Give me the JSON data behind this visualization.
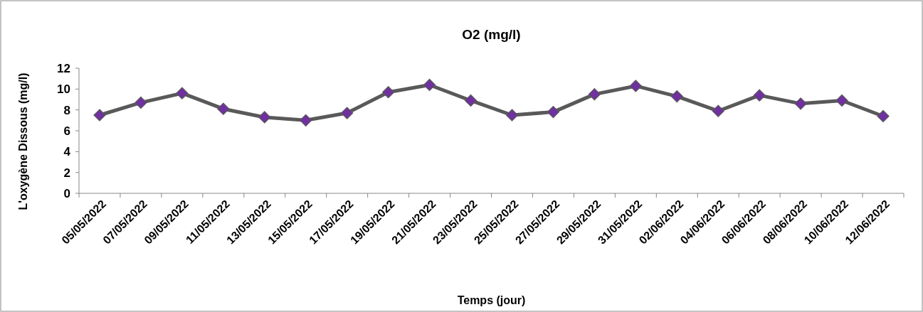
{
  "chart_data": {
    "type": "line",
    "title": "O2  (mg/l)",
    "xlabel": "Temps (jour)",
    "ylabel": "L'oxygène Dissous (mg/l)",
    "categories": [
      "05/05/2022",
      "07/05/2022",
      "09/05/2022",
      "11/05/2022",
      "13/05/2022",
      "15/05/2022",
      "17/05/2022",
      "19/05/2022",
      "21/05/2022",
      "23/05/2022",
      "25/05/2022",
      "27/05/2022",
      "29/05/2022",
      "31/05/2022",
      "02/06/2022",
      "04/06/2022",
      "06/06/2022",
      "08/06/2022",
      "10/06/2022",
      "12/06/2022"
    ],
    "series": [
      {
        "color": "#595959",
        "colors": [
          "#7030a0",
          "#7030a0",
          "#7030a0",
          "#7030a0",
          "#7030a0",
          "#7030a0",
          "#7030a0",
          "#7030a0",
          "#7030a0",
          "#7030a0",
          "#7030a0",
          "#7030a0",
          "#7030a0",
          "#7030a0",
          "#7030a0",
          "#7030a0",
          "#7030a0",
          "#7030a0",
          "#7030a0",
          "#7030a0"
        ],
        "values": [
          7.5,
          8.7,
          9.6,
          8.1,
          7.3,
          7.0,
          7.7,
          9.7,
          10.4,
          8.9,
          7.5,
          7.8,
          9.5,
          10.3,
          9.3,
          7.9,
          9.4,
          8.6,
          8.9,
          7.4
        ]
      }
    ],
    "ylim": [
      0,
      12
    ],
    "yticks": [
      0,
      2,
      4,
      6,
      8,
      10,
      12
    ],
    "grid": false,
    "marker": "diamond",
    "line_style": "solid"
  }
}
